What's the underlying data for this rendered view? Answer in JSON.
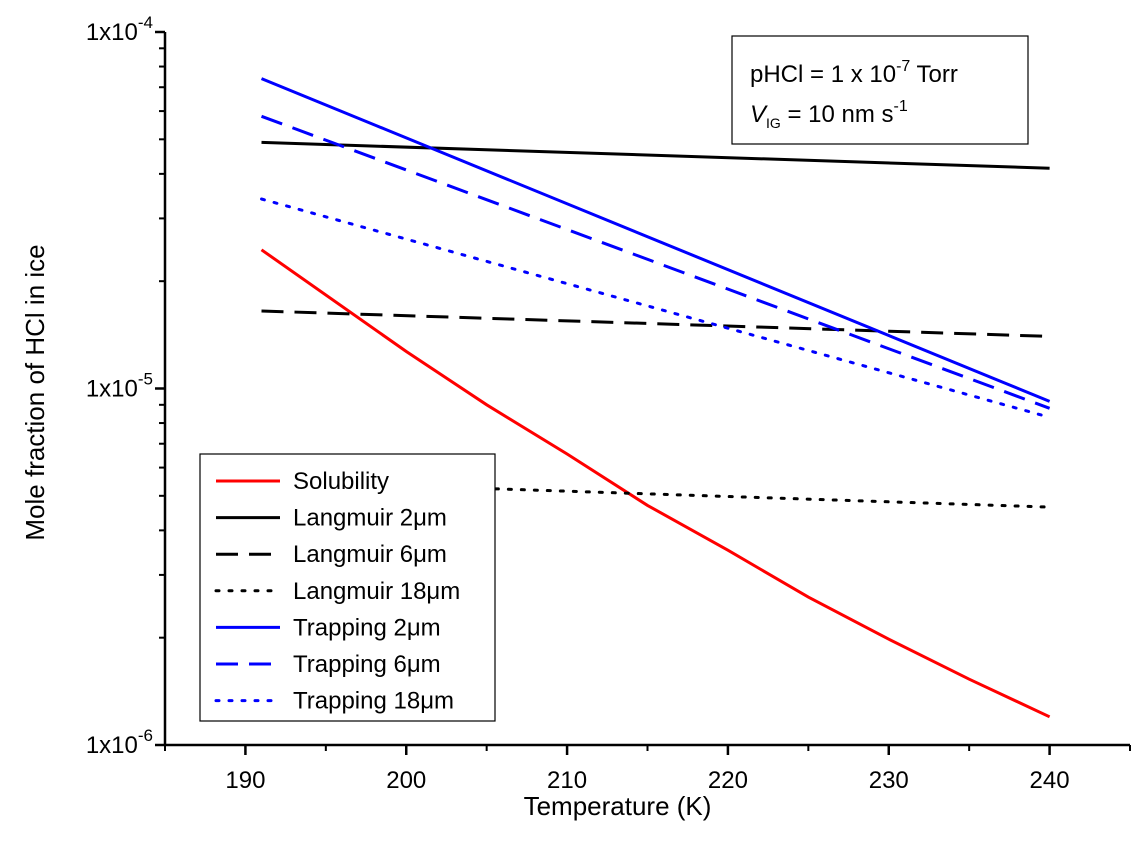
{
  "chart_data": {
    "type": "line",
    "xlabel": "Temperature (K)",
    "ylabel": "Mole fraction of HCl in ice",
    "xlim": [
      185,
      245
    ],
    "ylim": [
      1e-06,
      0.0001
    ],
    "yscale": "log",
    "x_ticks": [
      190,
      200,
      210,
      220,
      230,
      240
    ],
    "x_tick_labels": [
      "190",
      "200",
      "210",
      "220",
      "230",
      "240"
    ],
    "y_ticks": [
      {
        "value": 0.0001,
        "mantissa": "1x10",
        "exponent": "-4"
      },
      {
        "value": 1e-05,
        "mantissa": "1x10",
        "exponent": "-5"
      },
      {
        "value": 1e-06,
        "mantissa": "1x10",
        "exponent": "-6"
      }
    ],
    "annotation": {
      "line1_prefix": "pHCl = 1 x 10",
      "line1_exponent": "-7",
      "line1_suffix": " Torr",
      "line2_var": "V",
      "line2_sub": "IG",
      "line2_mid": " = 10 nm s",
      "line2_exponent": "-1"
    },
    "legend_position": "bottom-left",
    "series": [
      {
        "name": "Solubility",
        "color": "#ff0000",
        "style": "solid",
        "x": [
          191,
          200,
          205,
          210,
          215,
          220,
          225,
          230,
          235,
          240
        ],
        "y": [
          2.45e-05,
          1.27e-05,
          9e-06,
          6.55e-06,
          4.7e-06,
          3.52e-06,
          2.6e-06,
          1.98e-06,
          1.53e-06,
          1.2e-06
        ]
      },
      {
        "name": "Langmuir 2μm",
        "color": "#000000",
        "style": "solid",
        "x": [
          191,
          240
        ],
        "y": [
          4.9e-05,
          4.15e-05
        ]
      },
      {
        "name": "Langmuir 6μm",
        "color": "#000000",
        "style": "dashed",
        "x": [
          191,
          240
        ],
        "y": [
          1.65e-05,
          1.4e-05
        ]
      },
      {
        "name": "Langmuir 18μm",
        "color": "#000000",
        "style": "dotted",
        "x": [
          191,
          240
        ],
        "y": [
          5.5e-06,
          4.65e-06
        ]
      },
      {
        "name": "Trapping 2μm",
        "color": "#0000ff",
        "style": "solid",
        "x": [
          191,
          240
        ],
        "y": [
          7.4e-05,
          9.2e-06
        ]
      },
      {
        "name": "Trapping 6μm",
        "color": "#0000ff",
        "style": "dashed",
        "x": [
          191,
          240
        ],
        "y": [
          5.8e-05,
          8.8e-06
        ]
      },
      {
        "name": "Trapping 18μm",
        "color": "#0000ff",
        "style": "dotted",
        "x": [
          191,
          240
        ],
        "y": [
          3.4e-05,
          8.3e-06
        ]
      }
    ]
  }
}
